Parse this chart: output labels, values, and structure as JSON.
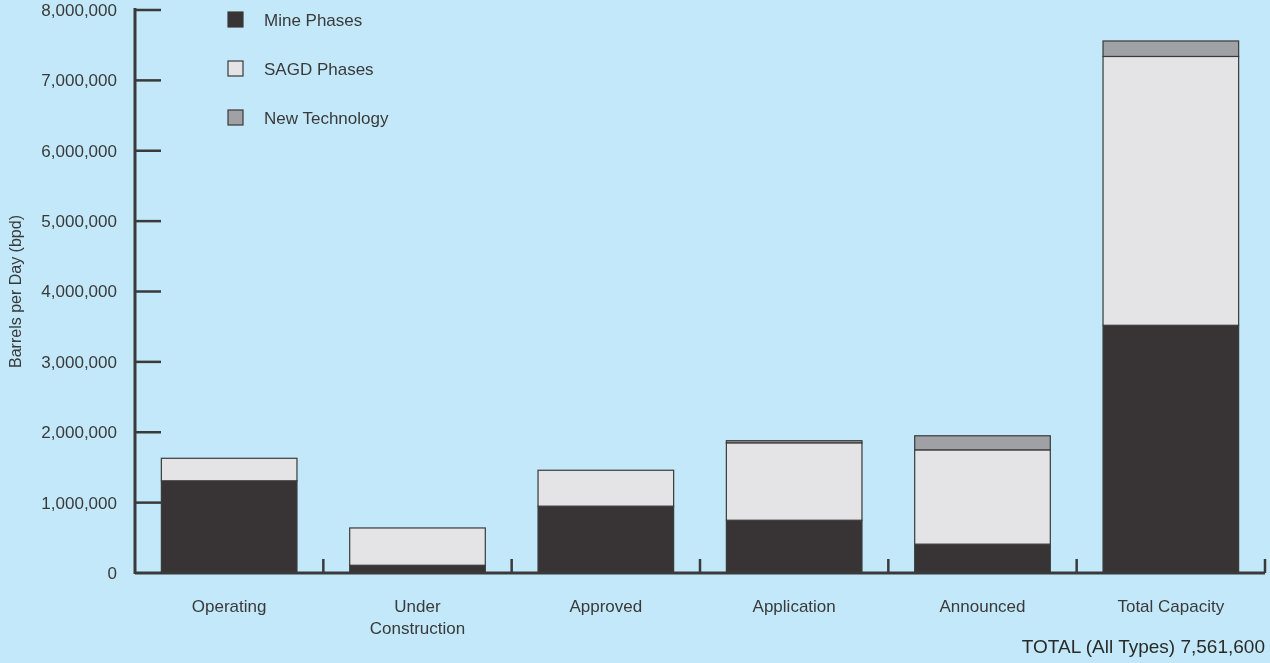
{
  "chart_data": {
    "type": "bar",
    "stacked": true,
    "ylabel": "Barrels per Day (bpd)",
    "categories": [
      "Operating",
      "Under Construction",
      "Approved",
      "Application",
      "Announced",
      "Total Capacity"
    ],
    "series": [
      {
        "name": "Mine Phases",
        "color": "#383435",
        "values": [
          1310000,
          110000,
          950000,
          750000,
          410000,
          3520000
        ]
      },
      {
        "name": "SAGD Phases",
        "color": "#e4e4e6",
        "values": [
          320000,
          530000,
          510000,
          1100000,
          1340000,
          3820000
        ]
      },
      {
        "name": "New Technology",
        "color": "#a0a1a5",
        "values": [
          0,
          0,
          0,
          30000,
          200000,
          220000
        ]
      }
    ],
    "ylim": [
      0,
      8000000
    ],
    "yticks": [
      {
        "value": 0,
        "label": "0"
      },
      {
        "value": 1000000,
        "label": "1,000,000"
      },
      {
        "value": 2000000,
        "label": "2,000,000"
      },
      {
        "value": 3000000,
        "label": "3,000,000"
      },
      {
        "value": 4000000,
        "label": "4,000,000"
      },
      {
        "value": 5000000,
        "label": "5,000,000"
      },
      {
        "value": 6000000,
        "label": "6,000,000"
      },
      {
        "value": 7000000,
        "label": "7,000,000"
      },
      {
        "value": 8000000,
        "label": "8,000,000"
      }
    ],
    "legend": "top left",
    "annotations": [
      "TOTAL (All Types) 7,561,600"
    ]
  }
}
